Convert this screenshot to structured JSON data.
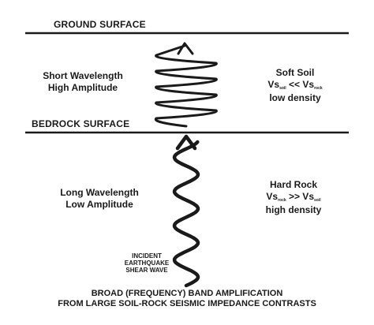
{
  "surfaces": {
    "ground": "GROUND SURFACE",
    "bedrock": "BEDROCK SURFACE"
  },
  "soil_wave": {
    "line1": "Short Wavelength",
    "line2": "High Amplitude"
  },
  "soil_props": {
    "title": "Soft Soil",
    "vs_prefix": "Vs",
    "vs_sub_a": "soil",
    "vs_relation": " << Vs",
    "vs_sub_b": "rock",
    "density": "low density"
  },
  "rock_wave": {
    "line1": "Long Wavelength",
    "line2": "Low Amplitude"
  },
  "rock_props": {
    "title": "Hard Rock",
    "vs_prefix": "Vs",
    "vs_sub_a": "rock",
    "vs_relation": " >> Vs",
    "vs_sub_b": "soil",
    "density": "high density"
  },
  "incident": {
    "line1": "INCIDENT",
    "line2": "EARTHQUAKE",
    "line3": "SHEAR WAVE"
  },
  "caption": {
    "line1": "BROAD (FREQUENCY) BAND AMPLIFICATION",
    "line2": "FROM LARGE SOIL-ROCK SEISMIC IMPEDANCE CONTRASTS"
  },
  "colors": {
    "ink": "#1a1a1a",
    "background": "#ffffff"
  }
}
